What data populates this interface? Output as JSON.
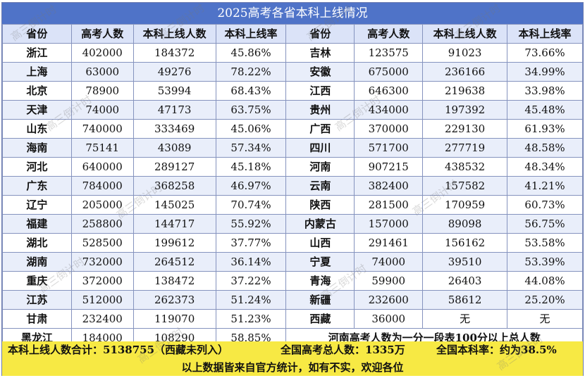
{
  "title": "2025高考各省本科上线情况",
  "columns": [
    "省份",
    "高考人数",
    "本科上线人数",
    "本科上线率",
    "省份",
    "高考人数",
    "本科上线人数",
    "本科上线率"
  ],
  "rows": [
    {
      "left": [
        "浙江",
        "402000",
        "184372",
        "45.86%"
      ],
      "right": [
        "吉林",
        "123575",
        "91023",
        "73.66%"
      ]
    },
    {
      "left": [
        "上海",
        "63000",
        "49276",
        "78.22%"
      ],
      "right": [
        "安徽",
        "675000",
        "236166",
        "34.99%"
      ]
    },
    {
      "left": [
        "北京",
        "78900",
        "53994",
        "68.43%"
      ],
      "right": [
        "江西",
        "646300",
        "219638",
        "33.98%"
      ]
    },
    {
      "left": [
        "天津",
        "74000",
        "47173",
        "63.75%"
      ],
      "right": [
        "贵州",
        "434000",
        "197392",
        "45.48%"
      ]
    },
    {
      "left": [
        "山东",
        "740000",
        "333469",
        "45.06%"
      ],
      "right": [
        "广西",
        "370000",
        "229130",
        "61.93%"
      ]
    },
    {
      "left": [
        "海南",
        "75141",
        "43089",
        "57.34%"
      ],
      "right": [
        "四川",
        "571700",
        "277719",
        "48.58%"
      ]
    },
    {
      "left": [
        "河北",
        "640000",
        "289127",
        "45.18%"
      ],
      "right": [
        "河南",
        "907215",
        "438532",
        "48.34%"
      ]
    },
    {
      "left": [
        "广东",
        "784000",
        "368258",
        "46.97%"
      ],
      "right": [
        "云南",
        "382400",
        "157582",
        "41.21%"
      ]
    },
    {
      "left": [
        "辽宁",
        "205000",
        "145025",
        "70.74%"
      ],
      "right": [
        "陕西",
        "281500",
        "170959",
        "60.73%"
      ]
    },
    {
      "left": [
        "福建",
        "258800",
        "144717",
        "55.92%"
      ],
      "right": [
        "内蒙古",
        "157000",
        "89098",
        "56.75%"
      ]
    },
    {
      "left": [
        "湖北",
        "528500",
        "199612",
        "37.77%"
      ],
      "right": [
        "山西",
        "291461",
        "156162",
        "53.58%"
      ]
    },
    {
      "left": [
        "湖南",
        "732000",
        "264512",
        "36.14%"
      ],
      "right": [
        "宁夏",
        "74000",
        "39510",
        "53.39%"
      ]
    },
    {
      "left": [
        "重庆",
        "372000",
        "138472",
        "37.22%"
      ],
      "right": [
        "青海",
        "59900",
        "26403",
        "44.08%"
      ]
    },
    {
      "left": [
        "江苏",
        "512000",
        "262373",
        "51.24%"
      ],
      "right": [
        "新疆",
        "232600",
        "58612",
        "25.20%"
      ]
    },
    {
      "left": [
        "甘肃",
        "232400",
        "119070",
        "51.23%"
      ],
      "right": [
        "西藏",
        "36000",
        "无",
        "无"
      ]
    }
  ],
  "last_row": {
    "left": [
      "黑龙江",
      "184000",
      "108290",
      "58.85%"
    ],
    "note": "河南高考人数为一分一段表100分以上总人数"
  },
  "summary": {
    "total_admitted": "本科上线人数合计：5138755（西藏未列入）",
    "total_candidates": "全国高考总人数：1335万",
    "national_rate": "全国本科率：约为38.5%"
  },
  "footer": "以上数据皆来自官方统计，如有不实，欢迎各位",
  "watermark": "高三倒计时"
}
